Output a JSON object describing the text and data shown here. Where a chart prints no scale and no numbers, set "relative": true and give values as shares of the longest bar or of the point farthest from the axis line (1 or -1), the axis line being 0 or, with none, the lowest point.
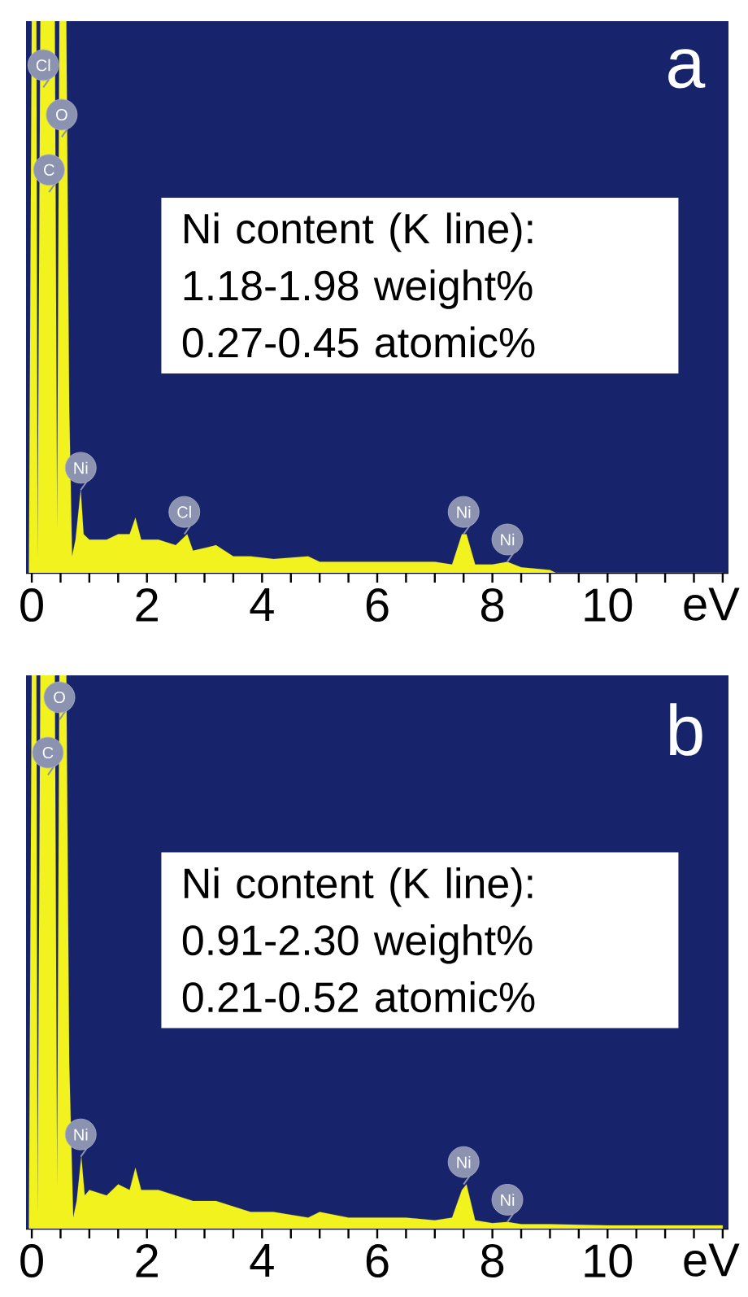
{
  "chart_data": [
    {
      "type": "area",
      "title": "a",
      "xlabel": "eV",
      "relative": true,
      "tick_labels": "x",
      "xlim": [
        -0.1,
        12.1
      ],
      "xticks": [
        0,
        {
          "value": 0.5,
          "label": null
        },
        {
          "value": 1,
          "label": null
        },
        {
          "value": 1.5,
          "label": null
        },
        2,
        {
          "value": 2.5,
          "label": null
        },
        {
          "value": 3,
          "label": null
        },
        {
          "value": 3.5,
          "label": null
        },
        4,
        {
          "value": 4.5,
          "label": null
        },
        {
          "value": 5,
          "label": null
        },
        {
          "value": 5.5,
          "label": null
        },
        6,
        {
          "value": 6.5,
          "label": null
        },
        {
          "value": 7,
          "label": null
        },
        {
          "value": 7.5,
          "label": null
        },
        8,
        {
          "value": 8.5,
          "label": null
        },
        {
          "value": 9,
          "label": null
        },
        {
          "value": 9.5,
          "label": null
        },
        10,
        {
          "value": 10.5,
          "label": null
        },
        {
          "value": 11,
          "label": null
        },
        {
          "value": 11.5,
          "label": null
        },
        {
          "value": 12,
          "label": null
        }
      ],
      "series": [
        {
          "color": "#f2f21e",
          "x": [
            -0.05,
            0.0,
            0.08,
            0.1,
            0.15,
            0.3,
            0.4,
            0.44,
            0.48,
            0.6,
            0.65,
            0.7,
            0.76,
            0.85,
            0.9,
            1.0,
            1.3,
            1.5,
            1.7,
            1.8,
            1.9,
            2.2,
            2.5,
            2.7,
            2.8,
            3.2,
            3.5,
            3.8,
            4.2,
            4.8,
            5.0,
            5.5,
            6.0,
            6.5,
            7.0,
            7.3,
            7.47,
            7.55,
            7.7,
            8.0,
            8.26,
            8.5,
            9.0,
            9.1,
            12.0
          ],
          "values": [
            0,
            1,
            1,
            0.03,
            1,
            1,
            1,
            0.08,
            1,
            1,
            0.3,
            0.03,
            0.06,
            0.15,
            0.07,
            0.06,
            0.06,
            0.07,
            0.07,
            0.1,
            0.06,
            0.06,
            0.05,
            0.07,
            0.04,
            0.05,
            0.03,
            0.03,
            0.025,
            0.03,
            0.02,
            0.02,
            0.02,
            0.02,
            0.02,
            0.015,
            0.07,
            0.07,
            0.015,
            0.015,
            0.02,
            0.01,
            0.005,
            0,
            0
          ]
        }
      ],
      "annotations": [
        {
          "text": "Cl",
          "x": 0.2,
          "y": 0.88
        },
        {
          "text": "O",
          "x": 0.52,
          "y": 0.79
        },
        {
          "text": "C",
          "x": 0.3,
          "y": 0.69
        },
        {
          "text": "Ni",
          "x": 0.85,
          "y": 0.15
        },
        {
          "text": "Cl",
          "x": 2.65,
          "y": 0.07
        },
        {
          "text": "Ni",
          "x": 7.5,
          "y": 0.07
        },
        {
          "text": "Ni",
          "x": 8.26,
          "y": 0.02
        },
        "Ni content (K line):",
        "1.18-1.98  weight%",
        "0.27-0.45  atomic%"
      ]
    },
    {
      "type": "area",
      "title": "b",
      "xlabel": "eV",
      "relative": true,
      "tick_labels": "x",
      "xlim": [
        -0.1,
        12.1
      ],
      "xticks": [
        0,
        {
          "value": 0.5,
          "label": null
        },
        {
          "value": 1,
          "label": null
        },
        {
          "value": 1.5,
          "label": null
        },
        2,
        {
          "value": 2.5,
          "label": null
        },
        {
          "value": 3,
          "label": null
        },
        {
          "value": 3.5,
          "label": null
        },
        4,
        {
          "value": 4.5,
          "label": null
        },
        {
          "value": 5,
          "label": null
        },
        {
          "value": 5.5,
          "label": null
        },
        6,
        {
          "value": 6.5,
          "label": null
        },
        {
          "value": 7,
          "label": null
        },
        {
          "value": 7.5,
          "label": null
        },
        8,
        {
          "value": 8.5,
          "label": null
        },
        {
          "value": 9,
          "label": null
        },
        {
          "value": 9.5,
          "label": null
        },
        10,
        {
          "value": 10.5,
          "label": null
        },
        {
          "value": 11,
          "label": null
        },
        {
          "value": 11.5,
          "label": null
        },
        {
          "value": 12,
          "label": null
        }
      ],
      "series": [
        {
          "color": "#f2f21e",
          "x": [
            -0.05,
            0.0,
            0.08,
            0.1,
            0.15,
            0.3,
            0.4,
            0.44,
            0.48,
            0.6,
            0.65,
            0.72,
            0.78,
            0.86,
            0.92,
            1.0,
            1.3,
            1.5,
            1.7,
            1.8,
            1.9,
            2.2,
            2.5,
            2.8,
            3.2,
            3.5,
            3.8,
            4.2,
            4.8,
            5.0,
            5.5,
            6.0,
            6.5,
            7.0,
            7.3,
            7.47,
            7.55,
            7.7,
            8.0,
            8.26,
            8.5,
            9.0,
            10.0,
            11.0,
            12.0
          ],
          "values": [
            0,
            1,
            1,
            0.03,
            1,
            1,
            1,
            0.08,
            1,
            1,
            0.3,
            0.02,
            0.05,
            0.13,
            0.06,
            0.07,
            0.06,
            0.08,
            0.07,
            0.11,
            0.07,
            0.07,
            0.06,
            0.05,
            0.05,
            0.04,
            0.03,
            0.03,
            0.02,
            0.03,
            0.02,
            0.02,
            0.02,
            0.015,
            0.02,
            0.07,
            0.08,
            0.015,
            0.01,
            0.012,
            0.008,
            0.008,
            0.006,
            0.006,
            0.006
          ]
        }
      ],
      "annotations": [
        {
          "text": "O",
          "x": 0.48,
          "y": 0.92
        },
        {
          "text": "C",
          "x": 0.28,
          "y": 0.82
        },
        {
          "text": "Ni",
          "x": 0.85,
          "y": 0.13
        },
        {
          "text": "Ni",
          "x": 7.5,
          "y": 0.08
        },
        {
          "text": "Ni",
          "x": 8.26,
          "y": 0.012
        },
        "Ni content (K line):",
        "0.91-2.30  weight%",
        "0.21-0.52  atomic%"
      ]
    }
  ]
}
